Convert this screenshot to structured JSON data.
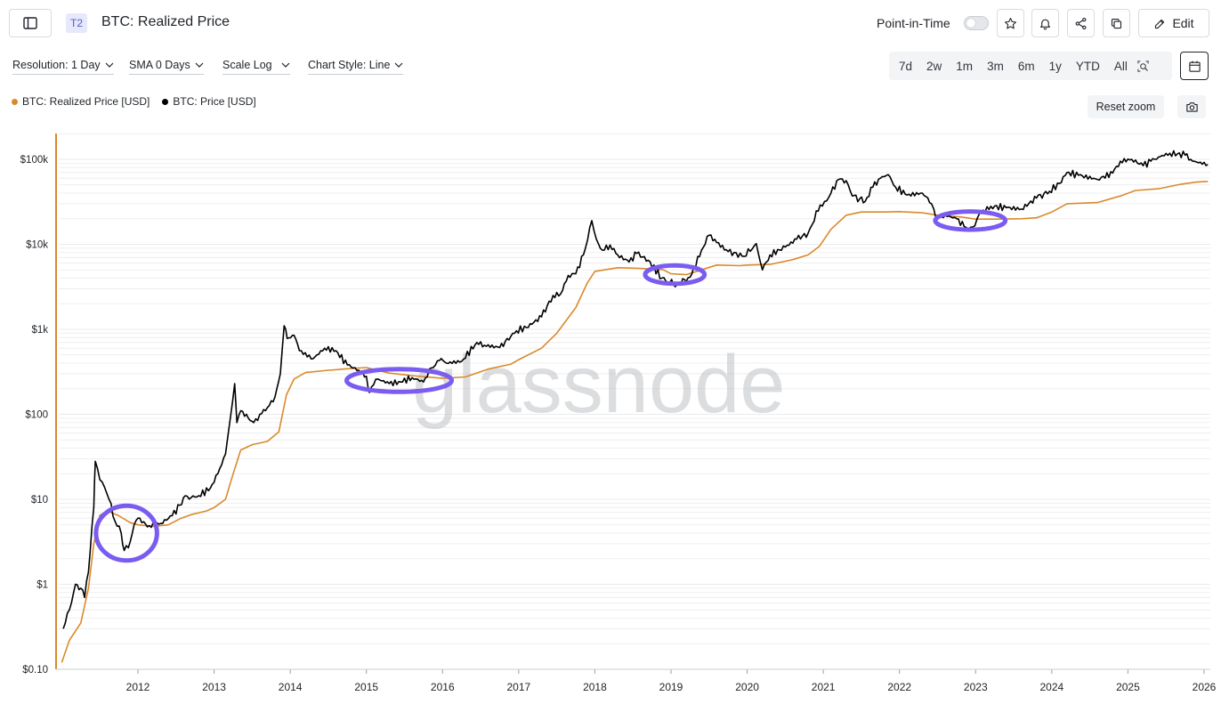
{
  "header": {
    "tier_badge": "T2",
    "title": "BTC: Realized Price",
    "point_in_time_label": "Point-in-Time",
    "edit_label": "Edit"
  },
  "toolbar": {
    "resolution": "Resolution: 1 Day",
    "sma": "SMA 0 Days",
    "scale": "Scale Log",
    "chart_style": "Chart Style: Line",
    "ranges": [
      "7d",
      "2w",
      "1m",
      "3m",
      "6m",
      "1y",
      "YTD",
      "All"
    ],
    "reset_zoom": "Reset zoom"
  },
  "icons": {
    "sidebar": "sidebar-icon",
    "star": "star-icon",
    "bell": "bell-icon",
    "share": "share-icon",
    "copy": "copy-icon",
    "edit": "pencil-icon",
    "zoom_select": "zoom-select-icon",
    "calendar": "calendar-icon",
    "camera": "camera-icon"
  },
  "colors": {
    "realized": "#d98a2b",
    "price": "#000000",
    "highlight": "#7b5cf0",
    "watermark": "#b9bcc1",
    "axis_line": "#d98a2b",
    "grid": "#e9ebee"
  },
  "chart_data": {
    "type": "line",
    "title": "BTC: Realized Price",
    "watermark": "glassnode",
    "y_scale": "log",
    "ylim": [
      0.1,
      200000
    ],
    "xlim": [
      2010.95,
      2026.05
    ],
    "y_ticks": [
      {
        "value": 0.1,
        "label": "$0.10"
      },
      {
        "value": 1,
        "label": "$1"
      },
      {
        "value": 10,
        "label": "$10"
      },
      {
        "value": 100,
        "label": "$100"
      },
      {
        "value": 1000,
        "label": "$1k"
      },
      {
        "value": 10000,
        "label": "$10k"
      },
      {
        "value": 100000,
        "label": "$100k"
      }
    ],
    "x_ticks": [
      {
        "value": 2012,
        "label": "2012"
      },
      {
        "value": 2013,
        "label": "2013"
      },
      {
        "value": 2014,
        "label": "2014"
      },
      {
        "value": 2015,
        "label": "2015"
      },
      {
        "value": 2016,
        "label": "2016"
      },
      {
        "value": 2017,
        "label": "2017"
      },
      {
        "value": 2018,
        "label": "2018"
      },
      {
        "value": 2019,
        "label": "2019"
      },
      {
        "value": 2020,
        "label": "2020"
      },
      {
        "value": 2021,
        "label": "2021"
      },
      {
        "value": 2022,
        "label": "2022"
      },
      {
        "value": 2023,
        "label": "2023"
      },
      {
        "value": 2024,
        "label": "2024"
      },
      {
        "value": 2025,
        "label": "2025"
      },
      {
        "value": 2026,
        "label": "2026"
      }
    ],
    "legend": [
      {
        "name": "BTC: Realized Price [USD]",
        "color": "#d98a2b"
      },
      {
        "name": "BTC: Price [USD]",
        "color": "#000000"
      }
    ],
    "series": [
      {
        "name": "BTC: Realized Price [USD]",
        "color": "#d98a2b",
        "points": [
          [
            2011.0,
            0.12
          ],
          [
            2011.1,
            0.22
          ],
          [
            2011.25,
            0.35
          ],
          [
            2011.35,
            0.9
          ],
          [
            2011.42,
            3
          ],
          [
            2011.5,
            6.5
          ],
          [
            2011.6,
            7.3
          ],
          [
            2011.75,
            6.4
          ],
          [
            2011.9,
            5.3
          ],
          [
            2012.0,
            5.0
          ],
          [
            2012.2,
            4.8
          ],
          [
            2012.4,
            5.0
          ],
          [
            2012.55,
            5.9
          ],
          [
            2012.7,
            6.6
          ],
          [
            2012.9,
            7.3
          ],
          [
            2013.0,
            8.0
          ],
          [
            2013.15,
            10
          ],
          [
            2013.25,
            20
          ],
          [
            2013.35,
            38
          ],
          [
            2013.5,
            44
          ],
          [
            2013.7,
            48
          ],
          [
            2013.85,
            62
          ],
          [
            2013.95,
            170
          ],
          [
            2014.05,
            260
          ],
          [
            2014.2,
            310
          ],
          [
            2014.5,
            330
          ],
          [
            2014.8,
            345
          ],
          [
            2015.0,
            355
          ],
          [
            2015.3,
            305
          ],
          [
            2015.6,
            285
          ],
          [
            2015.9,
            270
          ],
          [
            2016.0,
            265
          ],
          [
            2016.3,
            275
          ],
          [
            2016.6,
            340
          ],
          [
            2016.9,
            390
          ],
          [
            2017.0,
            440
          ],
          [
            2017.3,
            600
          ],
          [
            2017.5,
            900
          ],
          [
            2017.75,
            1800
          ],
          [
            2017.9,
            3500
          ],
          [
            2018.0,
            4800
          ],
          [
            2018.3,
            5300
          ],
          [
            2018.6,
            5200
          ],
          [
            2018.9,
            5000
          ],
          [
            2019.0,
            4500
          ],
          [
            2019.2,
            4400
          ],
          [
            2019.4,
            5000
          ],
          [
            2019.6,
            5700
          ],
          [
            2019.9,
            5600
          ],
          [
            2020.0,
            5700
          ],
          [
            2020.3,
            5800
          ],
          [
            2020.6,
            6600
          ],
          [
            2020.8,
            7500
          ],
          [
            2020.95,
            9500
          ],
          [
            2021.1,
            15000
          ],
          [
            2021.3,
            22000
          ],
          [
            2021.5,
            24000
          ],
          [
            2021.8,
            24000
          ],
          [
            2022.0,
            24200
          ],
          [
            2022.3,
            23500
          ],
          [
            2022.5,
            22000
          ],
          [
            2022.8,
            21000
          ],
          [
            2023.0,
            19800
          ],
          [
            2023.3,
            19800
          ],
          [
            2023.6,
            20000
          ],
          [
            2023.8,
            20500
          ],
          [
            2024.0,
            24000
          ],
          [
            2024.2,
            30000
          ],
          [
            2024.6,
            31000
          ],
          [
            2024.9,
            37000
          ],
          [
            2025.1,
            43000
          ],
          [
            2025.4,
            45000
          ],
          [
            2025.7,
            51000
          ],
          [
            2025.9,
            54000
          ],
          [
            2026.05,
            55000
          ]
        ]
      },
      {
        "name": "BTC: Price [USD]",
        "color": "#000000",
        "points": [
          [
            2011.02,
            0.3
          ],
          [
            2011.1,
            0.5
          ],
          [
            2011.18,
            1.0
          ],
          [
            2011.25,
            0.9
          ],
          [
            2011.3,
            0.7
          ],
          [
            2011.35,
            1.4
          ],
          [
            2011.42,
            8
          ],
          [
            2011.44,
            28
          ],
          [
            2011.5,
            17
          ],
          [
            2011.56,
            14
          ],
          [
            2011.62,
            10
          ],
          [
            2011.7,
            5.5
          ],
          [
            2011.78,
            4
          ],
          [
            2011.82,
            2.5
          ],
          [
            2011.9,
            3.2
          ],
          [
            2011.95,
            5
          ],
          [
            2012.0,
            6
          ],
          [
            2012.05,
            5.3
          ],
          [
            2012.15,
            4.9
          ],
          [
            2012.3,
            5.2
          ],
          [
            2012.45,
            6.4
          ],
          [
            2012.55,
            8.5
          ],
          [
            2012.62,
            11
          ],
          [
            2012.7,
            10.5
          ],
          [
            2012.8,
            11
          ],
          [
            2012.95,
            13.5
          ],
          [
            2013.05,
            20
          ],
          [
            2013.15,
            34
          ],
          [
            2013.22,
            100
          ],
          [
            2013.27,
            230
          ],
          [
            2013.3,
            80
          ],
          [
            2013.35,
            110
          ],
          [
            2013.45,
            90
          ],
          [
            2013.52,
            80
          ],
          [
            2013.6,
            100
          ],
          [
            2013.7,
            120
          ],
          [
            2013.8,
            160
          ],
          [
            2013.87,
            300
          ],
          [
            2013.92,
            1100
          ],
          [
            2013.96,
            780
          ],
          [
            2014.05,
            850
          ],
          [
            2014.12,
            560
          ],
          [
            2014.3,
            450
          ],
          [
            2014.45,
            600
          ],
          [
            2014.6,
            560
          ],
          [
            2014.75,
            380
          ],
          [
            2014.9,
            330
          ],
          [
            2015.0,
            280
          ],
          [
            2015.04,
            180
          ],
          [
            2015.15,
            260
          ],
          [
            2015.3,
            230
          ],
          [
            2015.45,
            240
          ],
          [
            2015.6,
            270
          ],
          [
            2015.75,
            240
          ],
          [
            2015.85,
            350
          ],
          [
            2015.96,
            430
          ],
          [
            2016.05,
            400
          ],
          [
            2016.25,
            420
          ],
          [
            2016.45,
            700
          ],
          [
            2016.55,
            650
          ],
          [
            2016.75,
            610
          ],
          [
            2016.97,
            960
          ],
          [
            2017.1,
            1050
          ],
          [
            2017.3,
            1400
          ],
          [
            2017.45,
            2500
          ],
          [
            2017.55,
            2600
          ],
          [
            2017.65,
            4300
          ],
          [
            2017.75,
            4500
          ],
          [
            2017.85,
            7500
          ],
          [
            2017.96,
            19000
          ],
          [
            2018.02,
            11500
          ],
          [
            2018.1,
            8500
          ],
          [
            2018.2,
            9800
          ],
          [
            2018.3,
            7500
          ],
          [
            2018.45,
            6200
          ],
          [
            2018.55,
            7800
          ],
          [
            2018.7,
            6500
          ],
          [
            2018.88,
            4000
          ],
          [
            2018.96,
            3600
          ],
          [
            2019.08,
            3400
          ],
          [
            2019.25,
            4100
          ],
          [
            2019.4,
            8500
          ],
          [
            2019.5,
            12800
          ],
          [
            2019.6,
            10500
          ],
          [
            2019.75,
            8200
          ],
          [
            2019.96,
            7200
          ],
          [
            2020.12,
            10200
          ],
          [
            2020.2,
            5000
          ],
          [
            2020.3,
            7500
          ],
          [
            2020.5,
            9300
          ],
          [
            2020.65,
            11500
          ],
          [
            2020.8,
            13500
          ],
          [
            2020.96,
            29000
          ],
          [
            2021.1,
            40000
          ],
          [
            2021.2,
            58000
          ],
          [
            2021.3,
            56000
          ],
          [
            2021.38,
            37000
          ],
          [
            2021.55,
            32000
          ],
          [
            2021.65,
            47000
          ],
          [
            2021.75,
            60000
          ],
          [
            2021.85,
            66000
          ],
          [
            2021.95,
            47000
          ],
          [
            2022.1,
            38000
          ],
          [
            2022.3,
            40000
          ],
          [
            2022.42,
            30000
          ],
          [
            2022.48,
            20000
          ],
          [
            2022.6,
            22000
          ],
          [
            2022.75,
            20000
          ],
          [
            2022.85,
            16200
          ],
          [
            2022.99,
            16500
          ],
          [
            2023.05,
            23000
          ],
          [
            2023.2,
            28000
          ],
          [
            2023.4,
            27000
          ],
          [
            2023.6,
            26000
          ],
          [
            2023.8,
            35000
          ],
          [
            2023.97,
            42000
          ],
          [
            2024.1,
            52000
          ],
          [
            2024.2,
            70000
          ],
          [
            2024.35,
            65000
          ],
          [
            2024.6,
            58000
          ],
          [
            2024.8,
            69000
          ],
          [
            2024.9,
            95000
          ],
          [
            2025.05,
            100000
          ],
          [
            2025.2,
            84000
          ],
          [
            2025.3,
            95000
          ],
          [
            2025.4,
            106000
          ],
          [
            2025.55,
            118000
          ],
          [
            2025.75,
            112000
          ],
          [
            2025.85,
            95000
          ],
          [
            2026.05,
            87000
          ]
        ]
      }
    ],
    "annotations": [
      {
        "type": "ellipse",
        "x_center": 2011.85,
        "y_center": 4.0,
        "x_radius": 0.4,
        "y_ratio": 2.1
      },
      {
        "type": "ellipse",
        "x_center": 2015.43,
        "y_center": 250,
        "x_radius": 0.69,
        "y_ratio": 1.36
      },
      {
        "type": "ellipse",
        "x_center": 2019.05,
        "y_center": 4400,
        "x_radius": 0.39,
        "y_ratio": 1.28
      },
      {
        "type": "ellipse",
        "x_center": 2022.93,
        "y_center": 19000,
        "x_radius": 0.46,
        "y_ratio": 1.28
      }
    ]
  }
}
